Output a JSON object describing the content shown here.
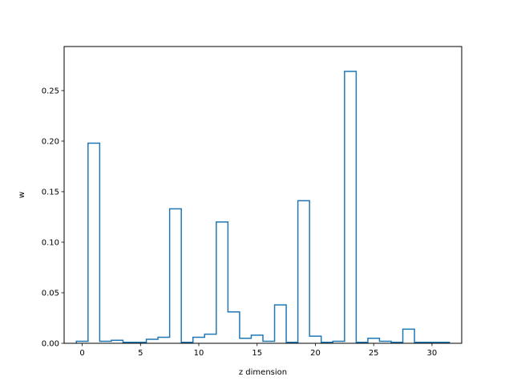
{
  "chart_data": {
    "type": "bar",
    "style": "step-histogram",
    "title": "",
    "xlabel": "z dimension",
    "ylabel": "w",
    "xlim": [
      -1.55,
      32.55
    ],
    "ylim": [
      0,
      0.2936
    ],
    "grid": false,
    "legend": "none",
    "x_ticks": [
      0,
      5,
      10,
      15,
      20,
      25,
      30
    ],
    "y_ticks": [
      0.0,
      0.05,
      0.1,
      0.15,
      0.2,
      0.25
    ],
    "x": [
      0,
      1,
      2,
      3,
      4,
      5,
      6,
      7,
      8,
      9,
      10,
      11,
      12,
      13,
      14,
      15,
      16,
      17,
      18,
      19,
      20,
      21,
      22,
      23,
      24,
      25,
      26,
      27,
      28,
      29,
      30,
      31
    ],
    "values": [
      0.002,
      0.198,
      0.002,
      0.003,
      0.001,
      0.001,
      0.004,
      0.006,
      0.133,
      0.001,
      0.006,
      0.009,
      0.12,
      0.031,
      0.005,
      0.008,
      0.002,
      0.038,
      0.001,
      0.141,
      0.007,
      0.001,
      0.002,
      0.269,
      0.001,
      0.005,
      0.002,
      0.001,
      0.014,
      0.001,
      0.001,
      0.001
    ],
    "color": "#1f77b4"
  }
}
